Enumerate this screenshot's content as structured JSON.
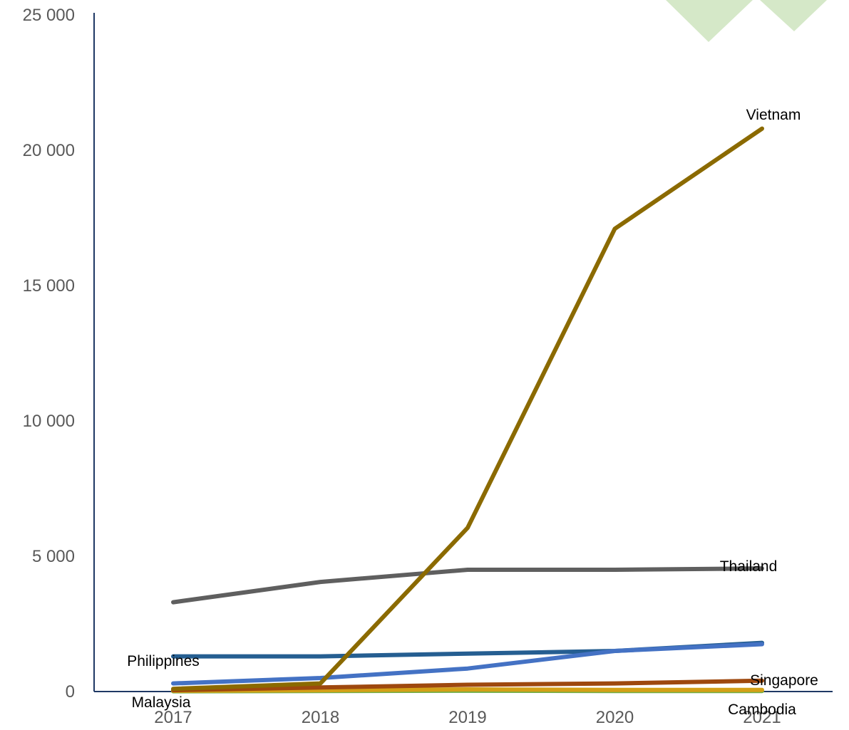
{
  "chart_data": {
    "type": "line",
    "x": [
      "2017",
      "2018",
      "2019",
      "2020",
      "2021"
    ],
    "ylim": [
      0,
      25000
    ],
    "yticks": [
      0,
      5000,
      10000,
      15000,
      20000,
      25000
    ],
    "ytick_labels": [
      "0",
      "5 000",
      "10 000",
      "15 000",
      "20 000",
      "25 000"
    ],
    "grid": false,
    "legend": "none",
    "series": [
      {
        "name": "Vietnam",
        "color": "#8B6A00",
        "values": [
          100,
          300,
          6050,
          17100,
          20800
        ]
      },
      {
        "name": "Thailand",
        "color": "#5F5F5F",
        "values": [
          3300,
          4050,
          4500,
          4500,
          4550
        ]
      },
      {
        "name": "Philippines",
        "color": "#255E91",
        "values": [
          1300,
          1300,
          1400,
          1500,
          1800
        ]
      },
      {
        "name": "",
        "color": "#4472C4",
        "values": [
          300,
          500,
          850,
          1500,
          1750
        ]
      },
      {
        "name": "Singapore",
        "color": "#9E480E",
        "values": [
          50,
          150,
          250,
          300,
          400
        ]
      },
      {
        "name": "Malaysia",
        "color": "#D4A017",
        "values": [
          30,
          50,
          80,
          60,
          60
        ]
      },
      {
        "name": "Cambodia",
        "color": "#70AD47",
        "values": [
          10,
          20,
          30,
          20,
          20
        ]
      }
    ]
  },
  "decor": {
    "triangle_color": "#D5E8C8"
  }
}
